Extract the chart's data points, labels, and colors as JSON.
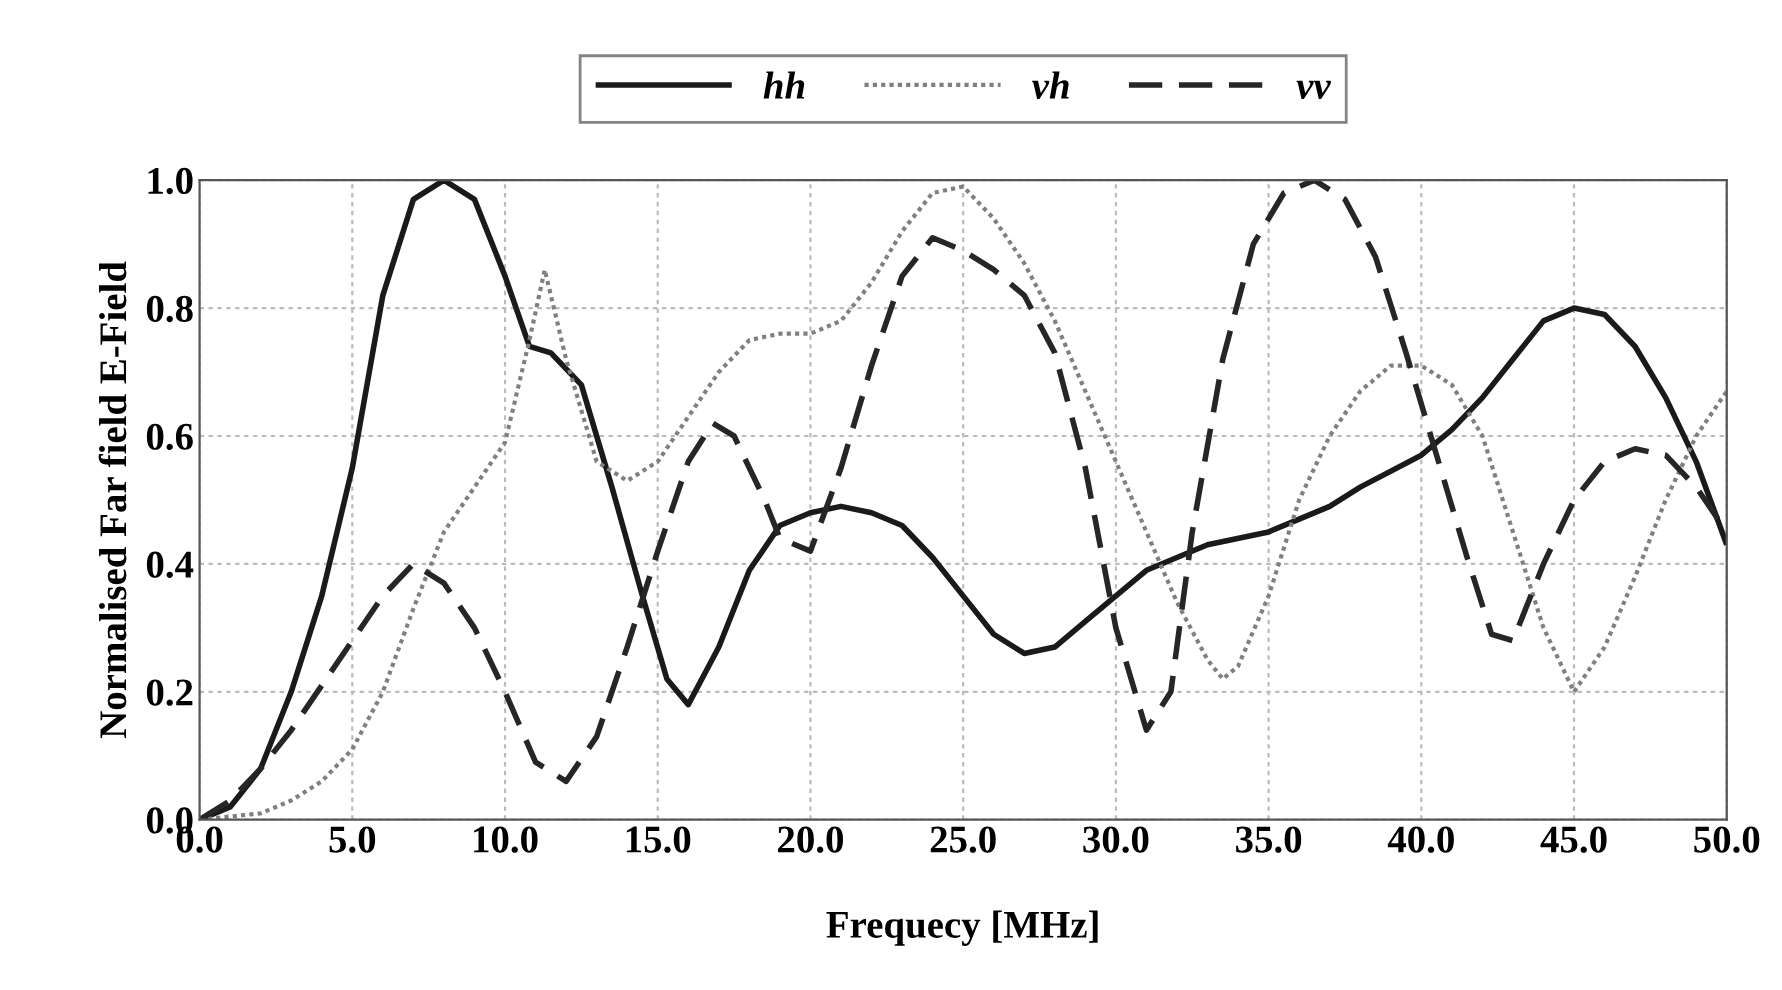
{
  "chart_data": {
    "type": "line",
    "xlabel": "Frequecy [MHz]",
    "ylabel": "Normalised Far field E-Field",
    "xlim": [
      0,
      50
    ],
    "ylim": [
      0,
      1
    ],
    "xticks": [
      {
        "value": 0,
        "label": "0.0"
      },
      {
        "value": 5,
        "label": "5.0"
      },
      {
        "value": 10,
        "label": "10.0"
      },
      {
        "value": 15,
        "label": "15.0"
      },
      {
        "value": 20,
        "label": "20.0"
      },
      {
        "value": 25,
        "label": "25.0"
      },
      {
        "value": 30,
        "label": "30.0"
      },
      {
        "value": 35,
        "label": "35.0"
      },
      {
        "value": 40,
        "label": "40.0"
      },
      {
        "value": 45,
        "label": "45.0"
      },
      {
        "value": 50,
        "label": "50.0"
      }
    ],
    "yticks": [
      {
        "value": 0,
        "label": "0.0"
      },
      {
        "value": 0.2,
        "label": "0.2"
      },
      {
        "value": 0.4,
        "label": "0.4"
      },
      {
        "value": 0.6,
        "label": "0.6"
      },
      {
        "value": 0.8,
        "label": "0.8"
      },
      {
        "value": 1,
        "label": "1.0"
      }
    ],
    "grid": true,
    "legend": "top",
    "marker": "none",
    "series": [
      {
        "name": "hh",
        "color": "#1a1a1a",
        "line_style": "solid",
        "x": [
          0,
          1,
          2,
          3,
          4,
          5,
          6,
          7,
          8,
          9,
          10,
          10.8,
          11.5,
          12.5,
          13.5,
          14.5,
          15.3,
          16,
          17,
          18,
          19,
          20,
          21,
          22,
          23,
          24,
          25,
          26,
          27,
          28,
          29,
          30,
          31,
          32,
          33,
          35,
          36,
          37,
          38,
          40,
          41,
          42,
          43,
          44,
          45,
          46,
          47,
          48,
          49,
          50
        ],
        "values": [
          0,
          0.02,
          0.08,
          0.2,
          0.35,
          0.55,
          0.82,
          0.97,
          1.0,
          0.97,
          0.85,
          0.74,
          0.73,
          0.68,
          0.52,
          0.35,
          0.22,
          0.18,
          0.27,
          0.39,
          0.46,
          0.48,
          0.49,
          0.48,
          0.46,
          0.41,
          0.35,
          0.29,
          0.26,
          0.27,
          0.31,
          0.35,
          0.39,
          0.41,
          0.43,
          0.45,
          0.47,
          0.49,
          0.52,
          0.57,
          0.61,
          0.66,
          0.72,
          0.78,
          0.8,
          0.79,
          0.74,
          0.66,
          0.56,
          0.43
        ]
      },
      {
        "name": "vh",
        "color": "#808080",
        "line_style": "dotted",
        "x": [
          0,
          2,
          3,
          4,
          5,
          6,
          7,
          8,
          9,
          10,
          10.8,
          11.3,
          12,
          13,
          14,
          15,
          16,
          17,
          18,
          19,
          20,
          21,
          22,
          23,
          24,
          25,
          26,
          27,
          28,
          29,
          30,
          31,
          32,
          33,
          33.5,
          34,
          35,
          36,
          37,
          38,
          39,
          40,
          41,
          42,
          43,
          44,
          45,
          46,
          47,
          48,
          49,
          50
        ],
        "values": [
          0,
          0.01,
          0.03,
          0.06,
          0.11,
          0.2,
          0.33,
          0.45,
          0.52,
          0.59,
          0.75,
          0.86,
          0.72,
          0.56,
          0.53,
          0.56,
          0.63,
          0.7,
          0.75,
          0.76,
          0.76,
          0.78,
          0.84,
          0.92,
          0.98,
          0.99,
          0.94,
          0.87,
          0.78,
          0.67,
          0.56,
          0.45,
          0.34,
          0.25,
          0.22,
          0.24,
          0.35,
          0.5,
          0.6,
          0.67,
          0.71,
          0.71,
          0.68,
          0.6,
          0.45,
          0.3,
          0.2,
          0.27,
          0.38,
          0.5,
          0.6,
          0.67
        ]
      },
      {
        "name": "vv",
        "color": "#262626",
        "line_style": "dashed",
        "x": [
          0,
          1,
          2,
          3,
          4,
          5,
          6,
          7,
          8,
          9,
          10,
          11,
          12,
          13,
          14,
          15,
          16,
          16.8,
          17.5,
          18.5,
          19,
          20,
          21,
          22,
          23,
          24,
          25,
          26,
          27,
          28,
          29,
          30,
          31,
          31.8,
          32.5,
          33.5,
          34.5,
          35.5,
          36.5,
          37.5,
          38.5,
          39.5,
          40.5,
          41.5,
          42.3,
          43,
          44,
          45,
          46,
          47,
          48,
          49,
          50
        ],
        "values": [
          0,
          0.03,
          0.08,
          0.14,
          0.21,
          0.28,
          0.35,
          0.4,
          0.37,
          0.3,
          0.2,
          0.09,
          0.06,
          0.13,
          0.27,
          0.42,
          0.56,
          0.62,
          0.6,
          0.5,
          0.44,
          0.42,
          0.55,
          0.71,
          0.85,
          0.91,
          0.89,
          0.86,
          0.82,
          0.73,
          0.55,
          0.3,
          0.14,
          0.2,
          0.45,
          0.72,
          0.9,
          0.98,
          1.0,
          0.97,
          0.88,
          0.73,
          0.57,
          0.41,
          0.29,
          0.28,
          0.4,
          0.5,
          0.56,
          0.58,
          0.57,
          0.52,
          0.45
        ]
      }
    ]
  }
}
